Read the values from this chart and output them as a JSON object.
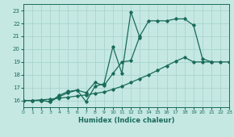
{
  "xlabel": "Humidex (Indice chaleur)",
  "xlim": [
    0,
    23
  ],
  "ylim": [
    15.5,
    23.5
  ],
  "xticks": [
    0,
    1,
    2,
    3,
    4,
    5,
    6,
    7,
    8,
    9,
    10,
    11,
    12,
    13,
    14,
    15,
    16,
    17,
    18,
    19,
    20,
    21,
    22,
    23
  ],
  "yticks": [
    16,
    17,
    18,
    19,
    20,
    21,
    22,
    23
  ],
  "bg_color": "#c5e8e3",
  "line_color": "#1a6b5a",
  "grid_color": "#b0d8d2",
  "lines": [
    {
      "x": [
        0,
        1,
        2,
        3,
        4,
        5,
        6,
        7,
        8,
        9,
        10,
        11,
        12,
        13,
        14,
        15,
        16,
        17,
        18,
        19,
        20,
        21
      ],
      "y": [
        16.0,
        16.0,
        16.0,
        15.9,
        16.3,
        16.6,
        16.8,
        16.6,
        17.4,
        17.15,
        18.1,
        19.0,
        19.1,
        21.0,
        22.2,
        22.2,
        22.2,
        22.35,
        22.35,
        21.85,
        19.25,
        19.0
      ]
    },
    {
      "x": [
        0,
        1,
        2,
        3,
        4,
        5,
        6,
        7,
        8,
        9,
        10,
        11,
        12,
        13
      ],
      "y": [
        16.0,
        16.0,
        16.0,
        15.9,
        16.4,
        16.7,
        16.8,
        15.9,
        17.1,
        17.3,
        20.2,
        18.1,
        22.9,
        20.9
      ]
    },
    {
      "x": [
        0,
        1,
        2,
        3,
        4,
        5,
        6,
        7,
        8,
        9,
        10,
        11,
        12,
        13,
        14,
        15,
        16,
        17,
        18,
        19,
        20,
        21,
        22,
        23
      ],
      "y": [
        16.0,
        16.0,
        16.05,
        16.1,
        16.18,
        16.25,
        16.35,
        16.43,
        16.55,
        16.65,
        16.87,
        17.1,
        17.4,
        17.7,
        18.0,
        18.35,
        18.7,
        19.05,
        19.35,
        19.0,
        19.0,
        19.0,
        19.0,
        19.0
      ]
    }
  ]
}
